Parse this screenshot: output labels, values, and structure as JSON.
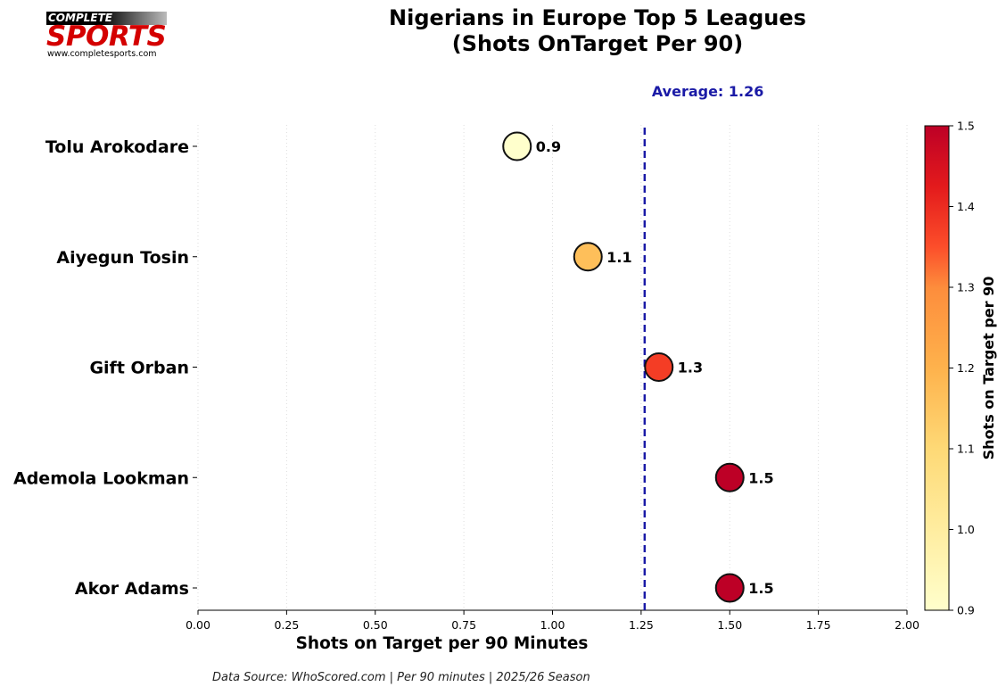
{
  "logo": {
    "top_text": "COMPLETE",
    "main_text": "SPORTS",
    "url": "www.completesports.com"
  },
  "chart_data": {
    "type": "scatter",
    "title_line1": "Nigerians in Europe Top 5 Leagues",
    "title_line2": "(Shots OnTarget Per 90)",
    "xlabel": "Shots on Target per 90 Minutes",
    "xlim": [
      0,
      2
    ],
    "xticks": [
      "0.00",
      "0.25",
      "0.50",
      "0.75",
      "1.00",
      "1.25",
      "1.50",
      "1.75",
      "2.00"
    ],
    "grid": "vertical dotted",
    "players": [
      {
        "name": "Tolu Arokodare",
        "value": 0.9,
        "label": "0.9"
      },
      {
        "name": "Aiyegun Tosin",
        "value": 1.1,
        "label": "1.1"
      },
      {
        "name": "Gift Orban",
        "value": 1.3,
        "label": "1.3"
      },
      {
        "name": "Ademola Lookman",
        "value": 1.5,
        "label": "1.5"
      },
      {
        "name": "Akor Adams",
        "value": 1.5,
        "label": "1.5"
      }
    ],
    "average": {
      "value": 1.26,
      "label": "Average: 1.26",
      "color": "#1a1aa6"
    },
    "colorbar": {
      "label": "Shots on Target per 90",
      "min": 0.9,
      "max": 1.5,
      "ticks": [
        "0.9",
        "1.0",
        "1.1",
        "1.2",
        "1.3",
        "1.4",
        "1.5"
      ],
      "colormap": "YlOrRd"
    }
  },
  "footer": {
    "source": "Data Source: WhoScored.com | Per 90 minutes | 2025/26 Season"
  }
}
